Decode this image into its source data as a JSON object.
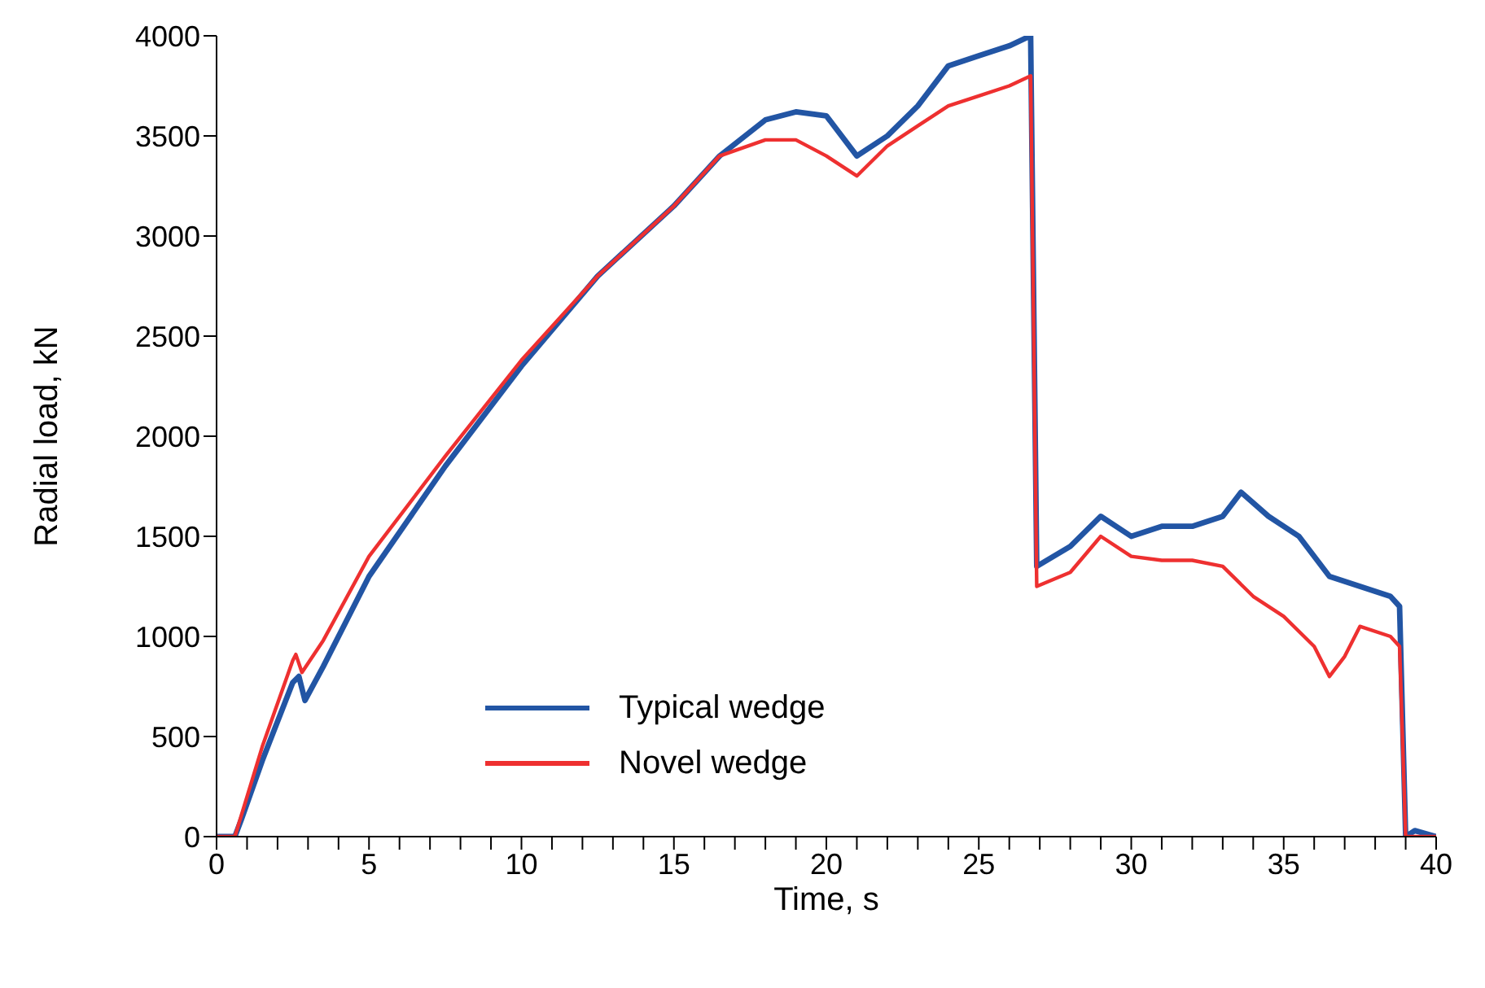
{
  "chart_data": {
    "type": "line",
    "xlabel": "Time, s",
    "ylabel": "Radial load, kN",
    "xlim": [
      0,
      40
    ],
    "ylim": [
      0,
      4000
    ],
    "xticks": [
      0,
      {
        "value": 1,
        "label": null
      },
      {
        "value": 2,
        "label": null
      },
      {
        "value": 3,
        "label": null
      },
      {
        "value": 4,
        "label": null
      },
      5,
      {
        "value": 6,
        "label": null
      },
      {
        "value": 7,
        "label": null
      },
      {
        "value": 8,
        "label": null
      },
      {
        "value": 9,
        "label": null
      },
      10,
      {
        "value": 11,
        "label": null
      },
      {
        "value": 12,
        "label": null
      },
      {
        "value": 13,
        "label": null
      },
      {
        "value": 14,
        "label": null
      },
      15,
      {
        "value": 16,
        "label": null
      },
      {
        "value": 17,
        "label": null
      },
      {
        "value": 18,
        "label": null
      },
      {
        "value": 19,
        "label": null
      },
      20,
      {
        "value": 21,
        "label": null
      },
      {
        "value": 22,
        "label": null
      },
      {
        "value": 23,
        "label": null
      },
      {
        "value": 24,
        "label": null
      },
      25,
      {
        "value": 26,
        "label": null
      },
      {
        "value": 27,
        "label": null
      },
      {
        "value": 28,
        "label": null
      },
      {
        "value": 29,
        "label": null
      },
      30,
      {
        "value": 31,
        "label": null
      },
      {
        "value": 32,
        "label": null
      },
      {
        "value": 33,
        "label": null
      },
      {
        "value": 34,
        "label": null
      },
      35,
      {
        "value": 36,
        "label": null
      },
      {
        "value": 37,
        "label": null
      },
      {
        "value": 38,
        "label": null
      },
      {
        "value": 39,
        "label": null
      },
      40
    ],
    "yticks": [
      0,
      500,
      1000,
      1500,
      2000,
      2500,
      3000,
      3500,
      4000
    ],
    "grid": false,
    "legend": "bottom",
    "marker": "none",
    "line_style": "solid",
    "series": [
      {
        "name": "Typical wedge",
        "color": "#2255a4",
        "x": [
          0,
          0.6,
          0.8,
          1.5,
          2.5,
          2.7,
          2.9,
          3.5,
          5,
          7.5,
          10,
          12.5,
          15,
          16.5,
          18,
          19,
          20,
          21,
          22,
          23,
          24,
          25,
          26,
          26.7,
          26.9,
          28,
          29,
          30,
          31,
          32,
          33,
          33.6,
          34.5,
          35.5,
          36.5,
          37.5,
          38.5,
          38.8,
          39,
          39.3,
          40
        ],
        "values": [
          0,
          0,
          80,
          380,
          770,
          800,
          680,
          850,
          1300,
          1850,
          2350,
          2800,
          3150,
          3400,
          3580,
          3620,
          3600,
          3400,
          3500,
          3650,
          3850,
          3900,
          3950,
          4000,
          1350,
          1450,
          1600,
          1500,
          1550,
          1550,
          1600,
          1720,
          1600,
          1500,
          1300,
          1250,
          1200,
          1150,
          0,
          30,
          0
        ]
      },
      {
        "name": "Novel wedge",
        "color": "#ee3030",
        "x": [
          0,
          0.6,
          0.8,
          1.5,
          2.5,
          2.6,
          2.8,
          3.5,
          5,
          7.5,
          10,
          12.5,
          15,
          16.5,
          18,
          19,
          20,
          21,
          22,
          23,
          24,
          25,
          26,
          26.7,
          26.9,
          28,
          29,
          30,
          31,
          32,
          33,
          34,
          35,
          36,
          36.5,
          37,
          37.5,
          38.5,
          38.8,
          39,
          40
        ],
        "values": [
          0,
          0,
          100,
          450,
          880,
          910,
          820,
          980,
          1400,
          1900,
          2380,
          2800,
          3150,
          3400,
          3480,
          3480,
          3400,
          3300,
          3450,
          3550,
          3650,
          3700,
          3750,
          3800,
          1250,
          1320,
          1500,
          1400,
          1380,
          1380,
          1350,
          1200,
          1100,
          950,
          800,
          900,
          1050,
          1000,
          950,
          0,
          0
        ]
      }
    ]
  }
}
